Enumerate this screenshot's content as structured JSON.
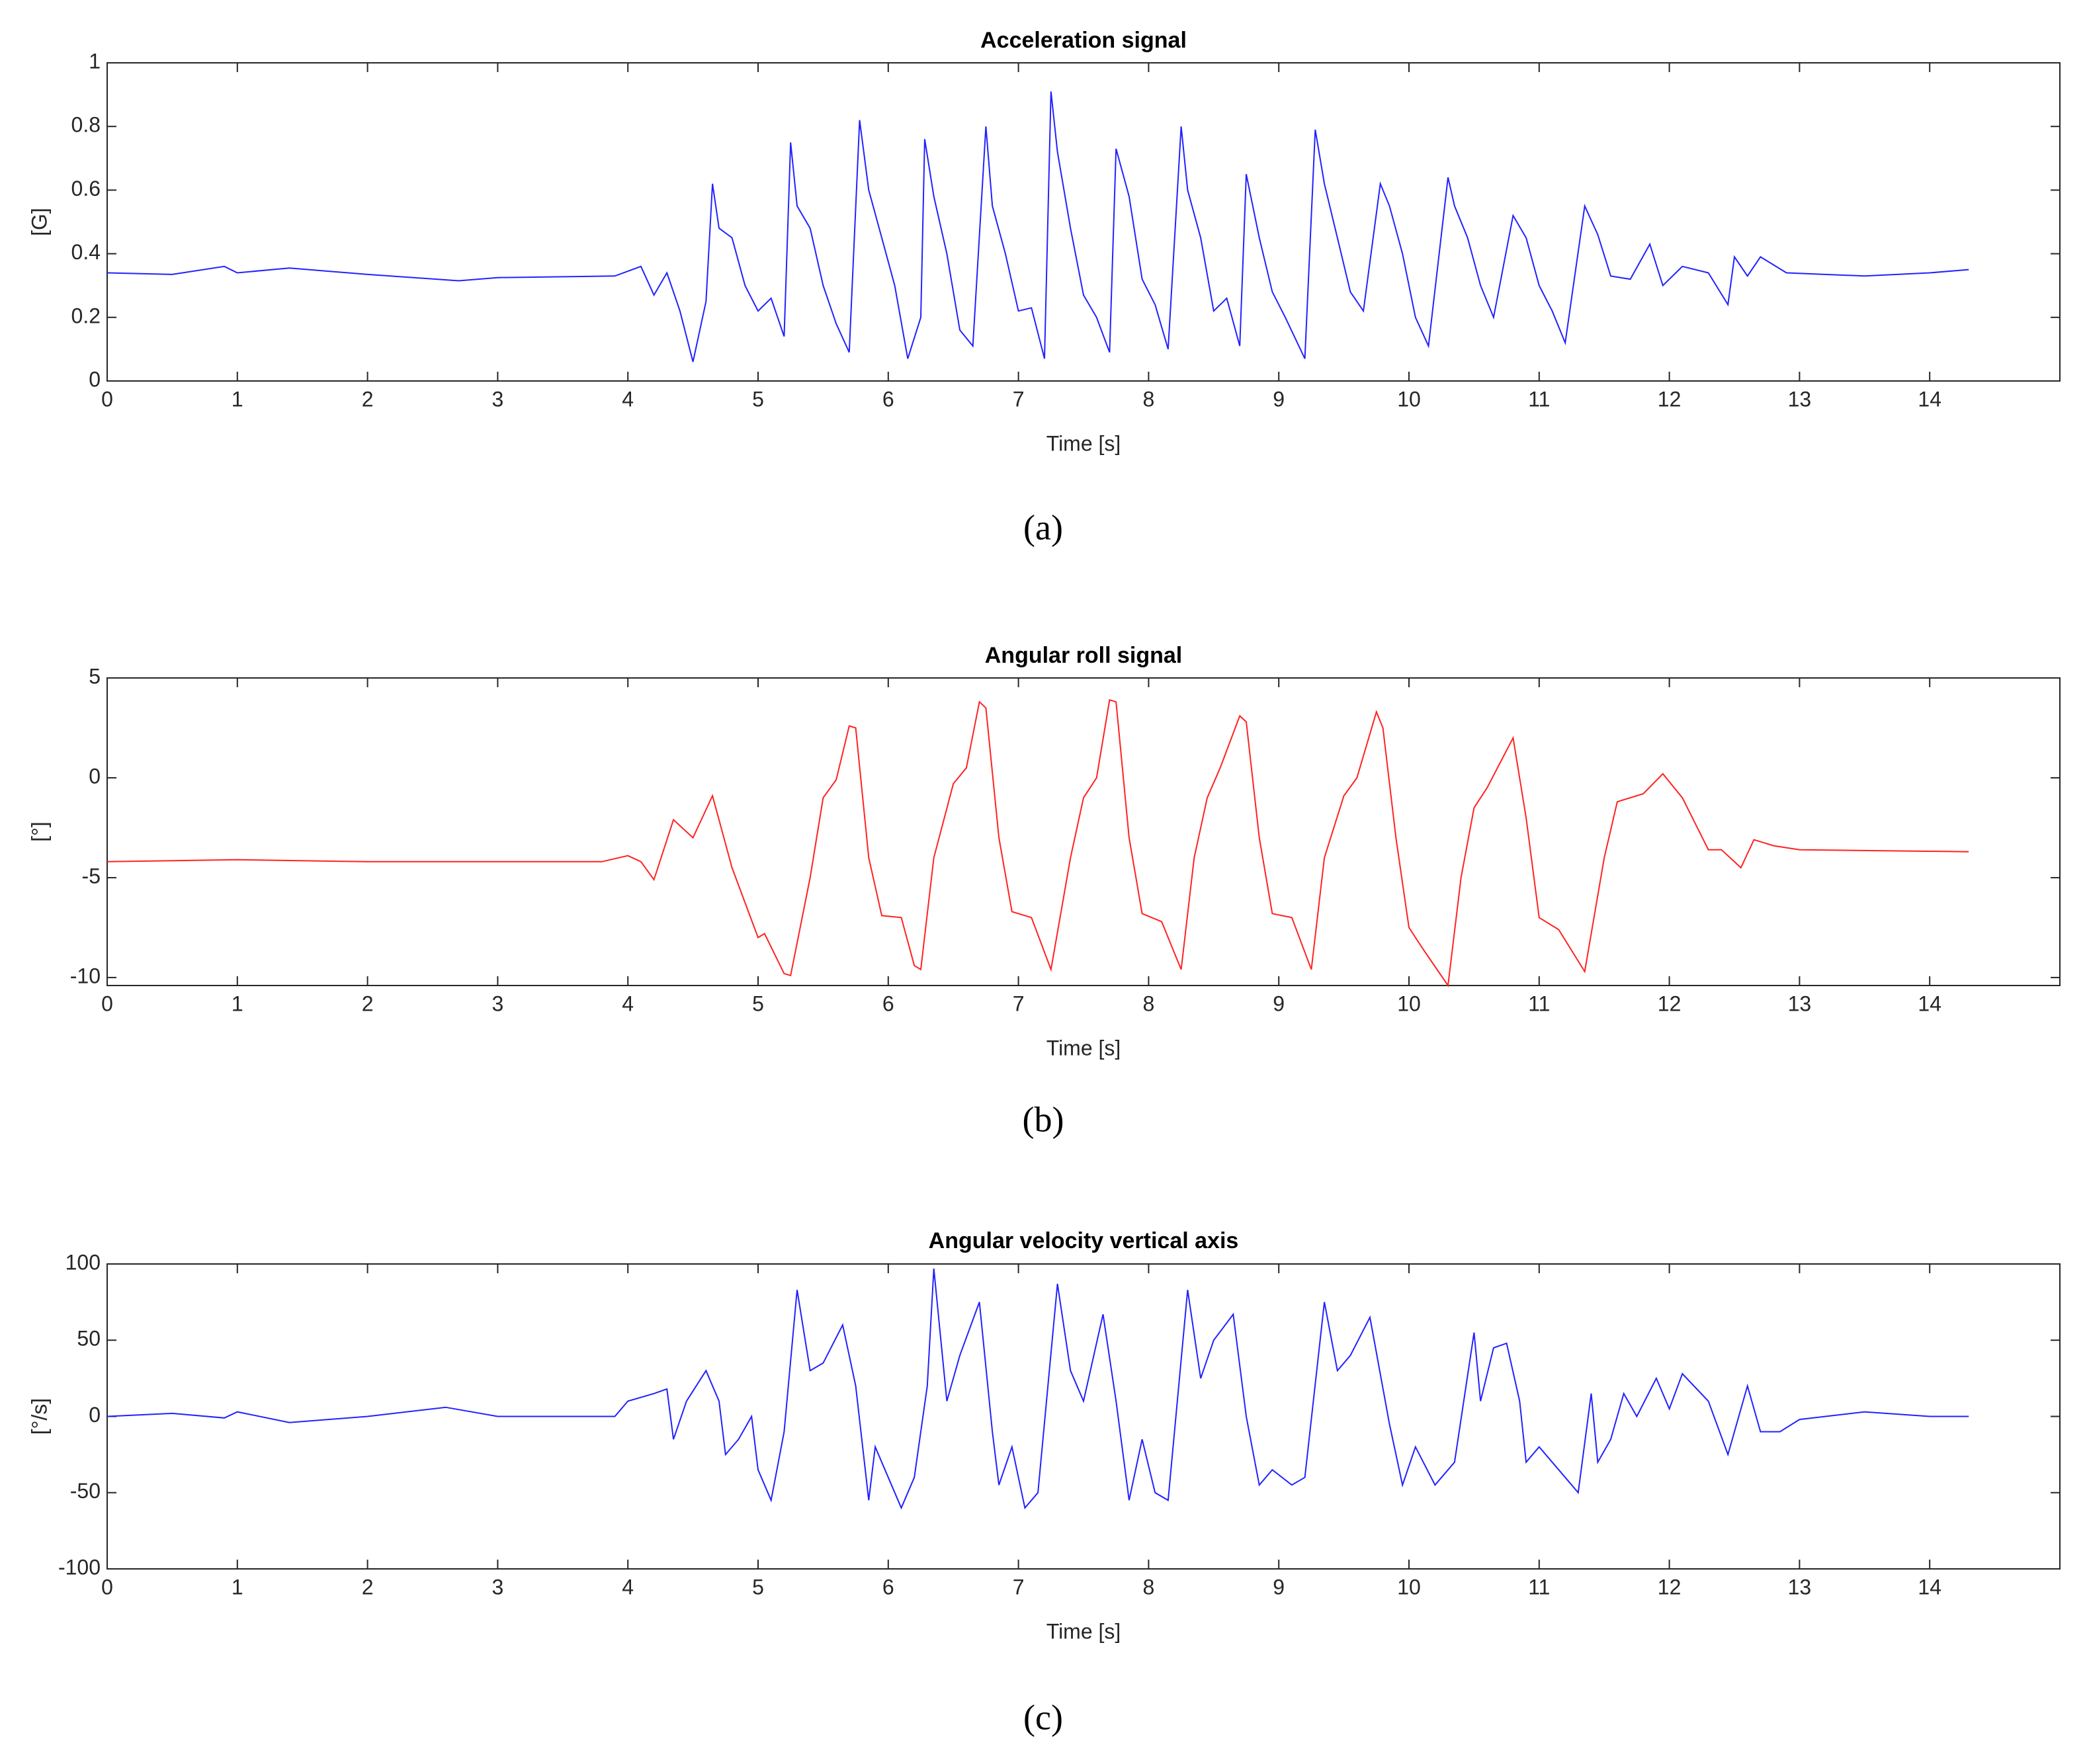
{
  "chart_data": [
    {
      "type": "line",
      "title": "Acceleration signal",
      "xlabel": "Time [s]",
      "ylabel": "[G]",
      "caption": "(a)",
      "color": "#2222ff",
      "xlim": [
        0,
        15
      ],
      "xticks": [
        0,
        1,
        2,
        3,
        4,
        5,
        6,
        7,
        8,
        9,
        10,
        11,
        12,
        13,
        14
      ],
      "ylim": [
        0,
        1
      ],
      "yticks": [
        0,
        0.2,
        0.4,
        0.6,
        0.8,
        1
      ],
      "x": [
        0,
        0.5,
        0.9,
        1,
        1.4,
        2,
        2.7,
        3,
        3.9,
        4.1,
        4.2,
        4.3,
        4.4,
        4.5,
        4.6,
        4.65,
        4.7,
        4.8,
        4.9,
        5.0,
        5.1,
        5.2,
        5.25,
        5.3,
        5.4,
        5.5,
        5.6,
        5.7,
        5.78,
        5.85,
        5.95,
        6.05,
        6.15,
        6.25,
        6.28,
        6.35,
        6.45,
        6.55,
        6.65,
        6.75,
        6.8,
        6.9,
        7.0,
        7.1,
        7.2,
        7.25,
        7.3,
        7.4,
        7.5,
        7.6,
        7.7,
        7.75,
        7.85,
        7.95,
        8.05,
        8.15,
        8.25,
        8.3,
        8.4,
        8.5,
        8.6,
        8.7,
        8.75,
        8.85,
        8.95,
        9.05,
        9.2,
        9.28,
        9.35,
        9.45,
        9.55,
        9.65,
        9.78,
        9.85,
        9.95,
        10.05,
        10.15,
        10.3,
        10.35,
        10.45,
        10.55,
        10.65,
        10.8,
        10.9,
        11.0,
        11.1,
        11.2,
        11.35,
        11.45,
        11.55,
        11.7,
        11.85,
        11.95,
        12.1,
        12.3,
        12.45,
        12.5,
        12.6,
        12.7,
        12.9,
        13.5,
        14.0,
        14.3
      ],
      "values": [
        0.34,
        0.335,
        0.36,
        0.34,
        0.355,
        0.335,
        0.315,
        0.325,
        0.33,
        0.36,
        0.27,
        0.34,
        0.22,
        0.06,
        0.25,
        0.62,
        0.48,
        0.45,
        0.3,
        0.22,
        0.26,
        0.14,
        0.75,
        0.55,
        0.48,
        0.3,
        0.18,
        0.09,
        0.82,
        0.6,
        0.45,
        0.3,
        0.07,
        0.2,
        0.76,
        0.58,
        0.4,
        0.16,
        0.11,
        0.8,
        0.55,
        0.4,
        0.22,
        0.23,
        0.07,
        0.91,
        0.72,
        0.48,
        0.27,
        0.2,
        0.09,
        0.73,
        0.58,
        0.32,
        0.24,
        0.1,
        0.8,
        0.6,
        0.45,
        0.22,
        0.26,
        0.11,
        0.65,
        0.45,
        0.28,
        0.2,
        0.07,
        0.79,
        0.62,
        0.45,
        0.28,
        0.22,
        0.62,
        0.55,
        0.4,
        0.2,
        0.11,
        0.64,
        0.55,
        0.45,
        0.3,
        0.2,
        0.52,
        0.45,
        0.3,
        0.22,
        0.12,
        0.55,
        0.46,
        0.33,
        0.32,
        0.43,
        0.3,
        0.36,
        0.34,
        0.24,
        0.39,
        0.33,
        0.39,
        0.34,
        0.33,
        0.34,
        0.35
      ]
    },
    {
      "type": "line",
      "title": "Angular roll signal",
      "xlabel": "Time [s]",
      "ylabel": "[°]",
      "caption": "(b)",
      "color": "#ff2222",
      "xlim": [
        0,
        15
      ],
      "xticks": [
        0,
        1,
        2,
        3,
        4,
        5,
        6,
        7,
        8,
        9,
        10,
        11,
        12,
        13,
        14
      ],
      "ylim": [
        -10.4,
        5
      ],
      "yticks": [
        -10,
        -5,
        0,
        5
      ],
      "x": [
        0,
        1,
        2,
        3,
        3.8,
        4.0,
        4.1,
        4.2,
        4.35,
        4.5,
        4.65,
        4.8,
        5.0,
        5.05,
        5.2,
        5.25,
        5.4,
        5.5,
        5.6,
        5.7,
        5.75,
        5.85,
        5.95,
        6.1,
        6.2,
        6.25,
        6.35,
        6.5,
        6.6,
        6.7,
        6.75,
        6.85,
        6.95,
        7.1,
        7.25,
        7.4,
        7.5,
        7.6,
        7.7,
        7.75,
        7.85,
        7.95,
        8.1,
        8.25,
        8.35,
        8.45,
        8.55,
        8.7,
        8.75,
        8.85,
        8.95,
        9.1,
        9.25,
        9.35,
        9.5,
        9.6,
        9.75,
        9.8,
        9.9,
        10.0,
        10.1,
        10.3,
        10.4,
        10.5,
        10.6,
        10.8,
        10.9,
        11.0,
        11.15,
        11.35,
        11.5,
        11.6,
        11.8,
        11.95,
        12.1,
        12.3,
        12.4,
        12.55,
        12.65,
        12.8,
        13.0,
        14.3
      ],
      "values": [
        -4.2,
        -4.1,
        -4.2,
        -4.2,
        -4.2,
        -3.9,
        -4.2,
        -5.1,
        -2.1,
        -3.0,
        -0.9,
        -4.5,
        -8.0,
        -7.8,
        -9.8,
        -9.9,
        -5.0,
        -1.0,
        -0.1,
        2.6,
        2.5,
        -4.0,
        -6.9,
        -7.0,
        -9.4,
        -9.6,
        -4.0,
        -0.3,
        0.5,
        3.8,
        3.5,
        -3.0,
        -6.7,
        -7.0,
        -9.6,
        -4.0,
        -1.0,
        0.0,
        3.9,
        3.8,
        -3.0,
        -6.8,
        -7.2,
        -9.6,
        -4.0,
        -1.0,
        0.5,
        3.1,
        2.8,
        -3.0,
        -6.8,
        -7.0,
        -9.6,
        -4.0,
        -0.9,
        0.0,
        3.3,
        2.5,
        -3.0,
        -7.5,
        -8.5,
        -10.4,
        -5.0,
        -1.5,
        -0.5,
        2.0,
        -2.0,
        -7.0,
        -7.6,
        -9.7,
        -4.0,
        -1.2,
        -0.8,
        0.2,
        -1.0,
        -3.6,
        -3.6,
        -4.5,
        -3.1,
        -3.4,
        -3.6,
        -3.7
      ]
    },
    {
      "type": "line",
      "title": "Angular velocity vertical axis",
      "xlabel": "Time [s]",
      "ylabel": "[°/s]",
      "caption": "(c)",
      "color": "#2222ff",
      "xlim": [
        0,
        15
      ],
      "xticks": [
        0,
        1,
        2,
        3,
        4,
        5,
        6,
        7,
        8,
        9,
        10,
        11,
        12,
        13,
        14
      ],
      "ylim": [
        -100,
        100
      ],
      "yticks": [
        -100,
        -50,
        0,
        50,
        100
      ],
      "x": [
        0,
        0.5,
        0.9,
        1.0,
        1.4,
        2,
        2.6,
        3,
        3.9,
        4.0,
        4.2,
        4.3,
        4.35,
        4.45,
        4.6,
        4.7,
        4.75,
        4.85,
        4.95,
        5.0,
        5.1,
        5.2,
        5.3,
        5.4,
        5.5,
        5.65,
        5.75,
        5.85,
        5.9,
        6.0,
        6.1,
        6.2,
        6.3,
        6.35,
        6.45,
        6.55,
        6.7,
        6.8,
        6.85,
        6.95,
        7.05,
        7.15,
        7.3,
        7.4,
        7.5,
        7.65,
        7.75,
        7.85,
        7.95,
        8.05,
        8.15,
        8.3,
        8.4,
        8.5,
        8.65,
        8.75,
        8.85,
        8.95,
        9.1,
        9.2,
        9.35,
        9.45,
        9.55,
        9.7,
        9.85,
        9.95,
        10.05,
        10.2,
        10.35,
        10.5,
        10.55,
        10.65,
        10.75,
        10.85,
        10.9,
        11.0,
        11.2,
        11.3,
        11.4,
        11.45,
        11.55,
        11.65,
        11.75,
        11.9,
        12.0,
        12.1,
        12.3,
        12.45,
        12.6,
        12.7,
        12.85,
        13.0,
        13.5,
        14.0,
        14.3
      ],
      "values": [
        0,
        2,
        -1,
        3,
        -4,
        0,
        6,
        0,
        0,
        10,
        15,
        18,
        -15,
        10,
        30,
        10,
        -25,
        -15,
        0,
        -35,
        -55,
        -10,
        83,
        30,
        35,
        60,
        20,
        -55,
        -20,
        -40,
        -60,
        -40,
        20,
        97,
        10,
        40,
        75,
        -10,
        -45,
        -20,
        -60,
        -50,
        87,
        30,
        10,
        67,
        10,
        -55,
        -15,
        -50,
        -55,
        83,
        25,
        50,
        67,
        0,
        -45,
        -35,
        -45,
        -40,
        75,
        30,
        40,
        65,
        -5,
        -45,
        -20,
        -45,
        -30,
        55,
        10,
        45,
        48,
        10,
        -30,
        -20,
        -40,
        -50,
        15,
        -30,
        -15,
        15,
        0,
        25,
        5,
        28,
        10,
        -25,
        20,
        -10,
        -10,
        -2,
        3,
        0,
        0
      ]
    }
  ]
}
